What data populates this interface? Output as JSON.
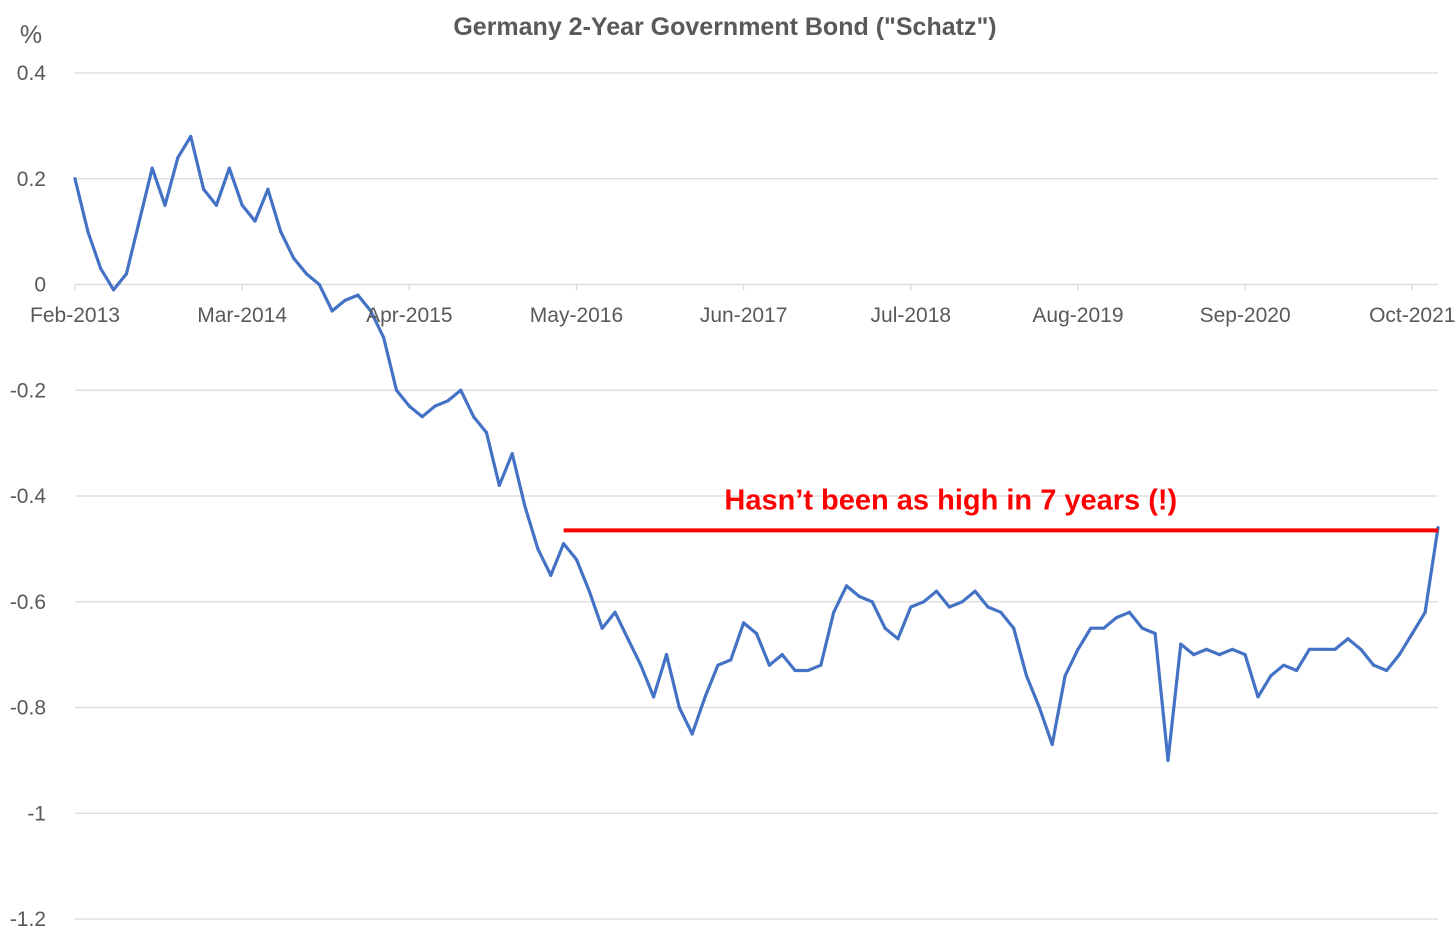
{
  "chart_data": {
    "type": "line",
    "title": "Germany 2-Year Government Bond (\"Schatz\")",
    "ylabel": "%",
    "xlabel": "",
    "ylim": [
      -1.2,
      0.4
    ],
    "yticks": [
      "0.4",
      "0.2",
      "0",
      "-0.2",
      "-0.4",
      "-0.6",
      "-0.8",
      "-1",
      "-1.2"
    ],
    "ytick_values": [
      0.4,
      0.2,
      0,
      -0.2,
      -0.4,
      -0.6,
      -0.8,
      -1,
      -1.2
    ],
    "xlim": [
      "2013-02",
      "2021-12"
    ],
    "xticks": [
      "Feb-2013",
      "Mar-2014",
      "Apr-2015",
      "May-2016",
      "Jun-2017",
      "Jul-2018",
      "Aug-2019",
      "Sep-2020",
      "Oct-2021"
    ],
    "xtick_values": [
      "2013-02",
      "2014-03",
      "2015-04",
      "2016-05",
      "2017-06",
      "2018-07",
      "2019-08",
      "2020-09",
      "2021-10"
    ],
    "grid": "horizontal",
    "line_color": "#4472C4",
    "series": [
      {
        "x": [
          "2013-02",
          "2013-03",
          "2013-04",
          "2013-05",
          "2013-06",
          "2013-07",
          "2013-08",
          "2013-09",
          "2013-10",
          "2013-11",
          "2013-12",
          "2014-01",
          "2014-02",
          "2014-03",
          "2014-04",
          "2014-05",
          "2014-06",
          "2014-07",
          "2014-08",
          "2014-09",
          "2014-10",
          "2014-11",
          "2014-12",
          "2015-01",
          "2015-02",
          "2015-03",
          "2015-04",
          "2015-05",
          "2015-06",
          "2015-07",
          "2015-08",
          "2015-09",
          "2015-10",
          "2015-11",
          "2015-12",
          "2016-01",
          "2016-02",
          "2016-03",
          "2016-04",
          "2016-05",
          "2016-06",
          "2016-07",
          "2016-08",
          "2016-09",
          "2016-10",
          "2016-11",
          "2016-12",
          "2017-01",
          "2017-02",
          "2017-03",
          "2017-04",
          "2017-05",
          "2017-06",
          "2017-07",
          "2017-08",
          "2017-09",
          "2017-10",
          "2017-11",
          "2017-12",
          "2018-01",
          "2018-02",
          "2018-03",
          "2018-04",
          "2018-05",
          "2018-06",
          "2018-07",
          "2018-08",
          "2018-09",
          "2018-10",
          "2018-11",
          "2018-12",
          "2019-01",
          "2019-02",
          "2019-03",
          "2019-04",
          "2019-05",
          "2019-06",
          "2019-07",
          "2019-08",
          "2019-09",
          "2019-10",
          "2019-11",
          "2019-12",
          "2020-01",
          "2020-02",
          "2020-03",
          "2020-04",
          "2020-05",
          "2020-06",
          "2020-07",
          "2020-08",
          "2020-09",
          "2020-10",
          "2020-11",
          "2020-12",
          "2021-01",
          "2021-02",
          "2021-03",
          "2021-04",
          "2021-05",
          "2021-06",
          "2021-07",
          "2021-08",
          "2021-09",
          "2021-10",
          "2021-11",
          "2021-12"
        ],
        "y": [
          0.2,
          0.1,
          0.03,
          -0.01,
          0.02,
          0.12,
          0.22,
          0.15,
          0.24,
          0.28,
          0.18,
          0.15,
          0.22,
          0.15,
          0.12,
          0.18,
          0.1,
          0.05,
          0.02,
          0.0,
          -0.05,
          -0.03,
          -0.02,
          -0.05,
          -0.1,
          -0.2,
          -0.23,
          -0.25,
          -0.23,
          -0.22,
          -0.2,
          -0.25,
          -0.28,
          -0.38,
          -0.32,
          -0.42,
          -0.5,
          -0.55,
          -0.49,
          -0.52,
          -0.58,
          -0.65,
          -0.62,
          -0.67,
          -0.72,
          -0.78,
          -0.7,
          -0.8,
          -0.85,
          -0.78,
          -0.72,
          -0.71,
          -0.64,
          -0.66,
          -0.72,
          -0.7,
          -0.73,
          -0.73,
          -0.72,
          -0.62,
          -0.57,
          -0.59,
          -0.6,
          -0.65,
          -0.67,
          -0.61,
          -0.6,
          -0.58,
          -0.61,
          -0.6,
          -0.58,
          -0.61,
          -0.62,
          -0.65,
          -0.74,
          -0.8,
          -0.87,
          -0.74,
          -0.69,
          -0.65,
          -0.65,
          -0.63,
          -0.62,
          -0.65,
          -0.66,
          -0.9,
          -0.68,
          -0.7,
          -0.69,
          -0.7,
          -0.69,
          -0.7,
          -0.78,
          -0.74,
          -0.72,
          -0.73,
          -0.69,
          -0.69,
          -0.69,
          -0.67,
          -0.69,
          -0.72,
          -0.73,
          -0.7,
          -0.66,
          -0.62,
          -0.46
        ]
      }
    ],
    "annotations": [
      {
        "text": "Hasn’t been as high in 7 years (!)",
        "color": "#FF0000",
        "line_value": -0.465,
        "line_from": "2016-04",
        "line_to": "2021-12"
      }
    ]
  }
}
